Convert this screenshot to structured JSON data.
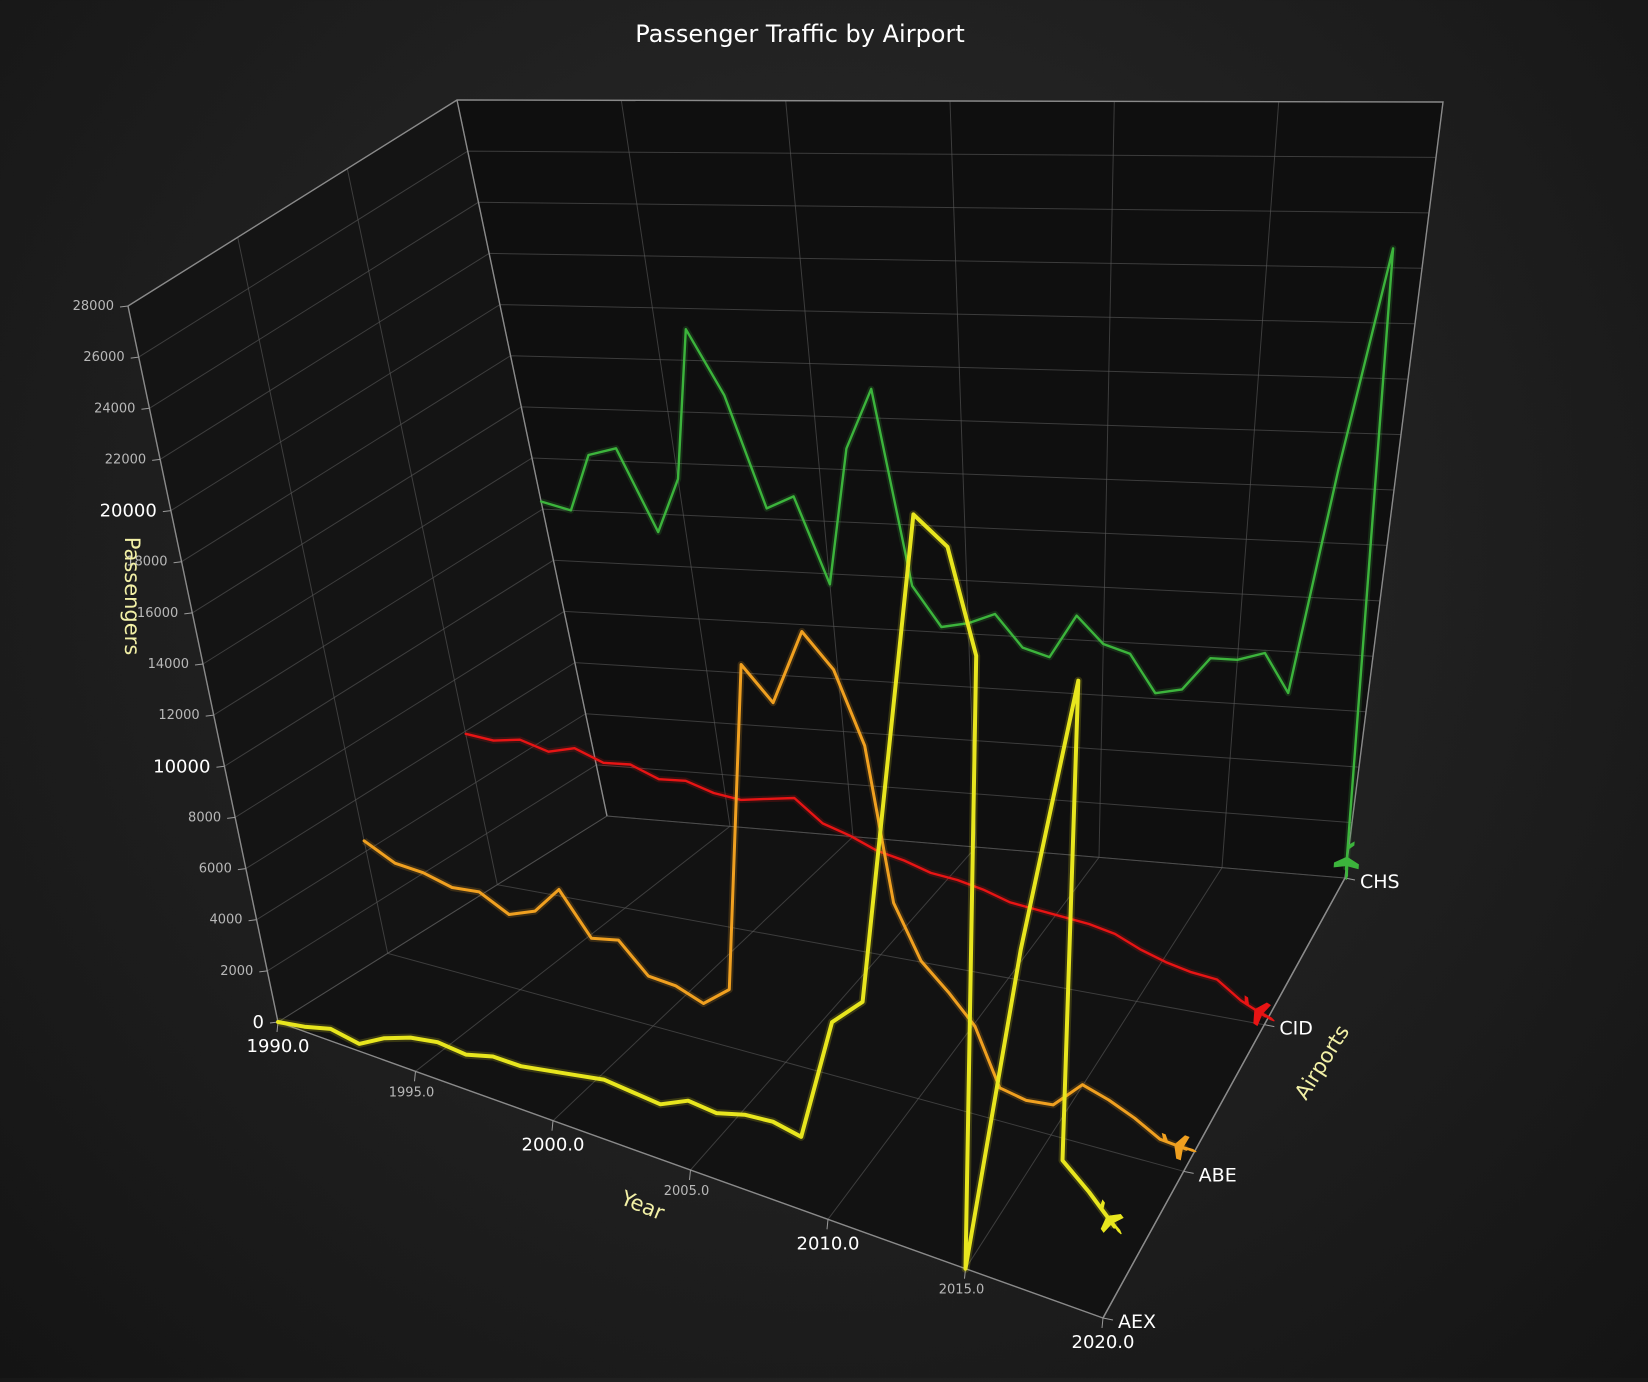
{
  "chart_data": {
    "type": "line",
    "title": "Passenger Traffic by Airport",
    "ylabel": "Passengers",
    "xlabel": "Year",
    "zlabel": "Airports",
    "ylim": [
      0,
      28000
    ],
    "xlim": [
      1990,
      2020
    ],
    "grid": true,
    "y_ticks": [
      {
        "value": 0,
        "label": "0",
        "major": true
      },
      {
        "value": 2000,
        "label": "2000",
        "major": false
      },
      {
        "value": 4000,
        "label": "4000",
        "major": false
      },
      {
        "value": 6000,
        "label": "6000",
        "major": false
      },
      {
        "value": 8000,
        "label": "8000",
        "major": false
      },
      {
        "value": 10000,
        "label": "10000",
        "major": true
      },
      {
        "value": 12000,
        "label": "12000",
        "major": false
      },
      {
        "value": 14000,
        "label": "14000",
        "major": false
      },
      {
        "value": 16000,
        "label": "16000",
        "major": false
      },
      {
        "value": 18000,
        "label": "18000",
        "major": false
      },
      {
        "value": 20000,
        "label": "20000",
        "major": true
      },
      {
        "value": 22000,
        "label": "22000",
        "major": false
      },
      {
        "value": 24000,
        "label": "24000",
        "major": false
      },
      {
        "value": 26000,
        "label": "26000",
        "major": false
      },
      {
        "value": 28000,
        "label": "28000",
        "major": false
      }
    ],
    "x_ticks": [
      {
        "value": 1990,
        "label": "1990.0",
        "major": true
      },
      {
        "value": 1995,
        "label": "1995.0",
        "major": false
      },
      {
        "value": 2000,
        "label": "2000.0",
        "major": true
      },
      {
        "value": 2005,
        "label": "2005.0",
        "major": false
      },
      {
        "value": 2010,
        "label": "2010.0",
        "major": true
      },
      {
        "value": 2015,
        "label": "2015.0",
        "major": false
      },
      {
        "value": 2020,
        "label": "2020.0",
        "major": true
      }
    ],
    "categories": [
      "AEX",
      "ABE",
      "CID",
      "CHS"
    ],
    "x": [
      1990,
      1991,
      1992,
      1993,
      1994,
      1995,
      1996,
      1997,
      1998,
      1999,
      2000,
      2001,
      2002,
      2003,
      2004,
      2005,
      2006,
      2007,
      2008,
      2009,
      2010,
      2011,
      2012,
      2013,
      2014,
      2015,
      2016,
      2017,
      2018,
      2019,
      2020
    ],
    "series": [
      {
        "name": "AEX",
        "color": "#e8e61e",
        "values": [
          0,
          200,
          500,
          300,
          900,
          1300,
          1500,
          1400,
          1700,
          1700,
          1900,
          2100,
          2300,
          2200,
          2100,
          2600,
          2500,
          2800,
          2900,
          2700,
          7300,
          8400,
          26700,
          25800,
          22100,
          0,
          12000,
          22100,
          5000,
          4200,
          3300
        ]
      },
      {
        "name": "ABE",
        "color": "#f0a020",
        "values": [
          4400,
          3800,
          3700,
          3400,
          3500,
          2900,
          3300,
          4400,
          2800,
          3000,
          1900,
          1800,
          1400,
          2200,
          14700,
          13500,
          16400,
          15200,
          12600,
          7000,
          5100,
          4200,
          3200,
          1200,
          1000,
          1100,
          2100,
          1800,
          1400,
          900,
          800
        ]
      },
      {
        "name": "CID",
        "color": "#e81414",
        "values": [
          5900,
          5800,
          6000,
          5700,
          6000,
          5600,
          5700,
          5300,
          5400,
          5100,
          5000,
          5200,
          5400,
          4600,
          4300,
          3900,
          3700,
          3400,
          3300,
          3100,
          2800,
          2700,
          2600,
          2500,
          2300,
          1900,
          1600,
          1400,
          1300,
          700,
          300
        ]
      },
      {
        "name": "CHS",
        "color": "#3cb43c",
        "values": [
          12300,
          12000,
          14200,
          14500,
          11300,
          13400,
          19200,
          16700,
          12400,
          12900,
          9600,
          14800,
          17100,
          9700,
          8200,
          8400,
          8800,
          7600,
          7300,
          8900,
          7900,
          7600,
          6200,
          6400,
          7600,
          7600,
          7900,
          6500,
          14700,
          22700,
          300
        ]
      }
    ]
  }
}
